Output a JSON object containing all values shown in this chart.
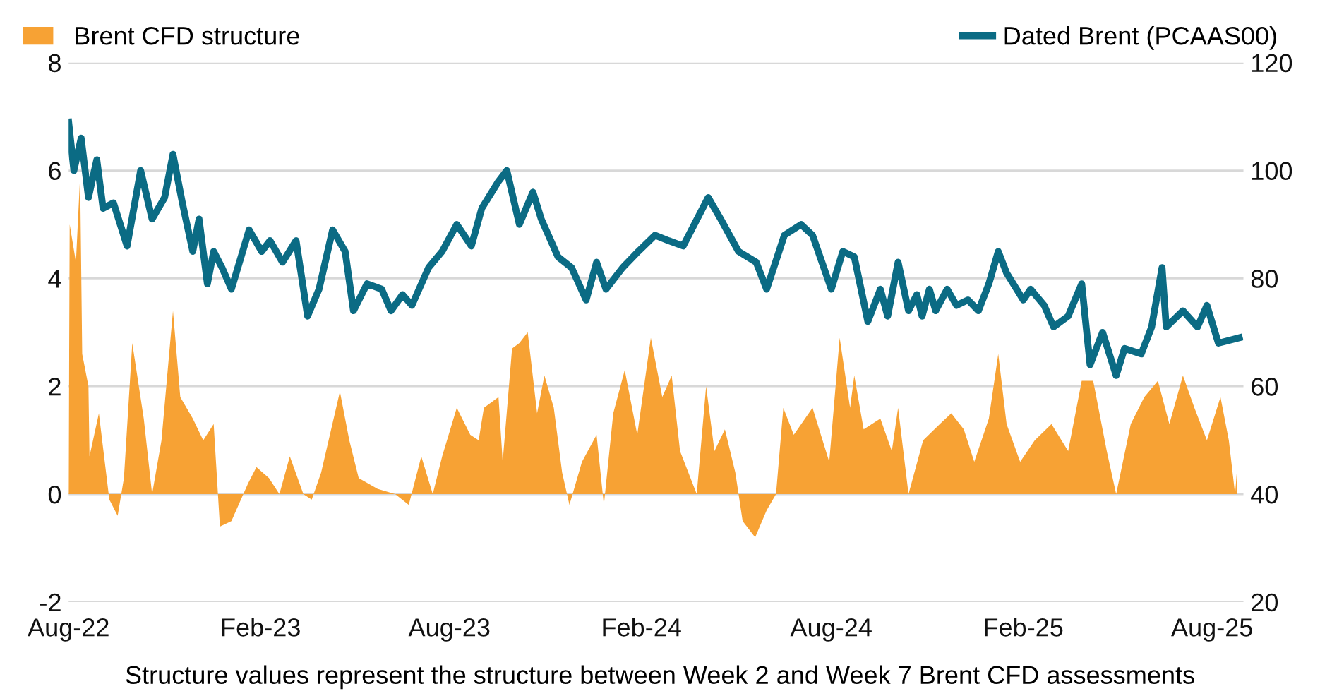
{
  "chart_data": {
    "type": "line",
    "legend": "top",
    "grid": "y",
    "annotations": [
      "Structure values represent the structure between Week 2 and Week 7 Brent CFD assessments"
    ],
    "ylim": [
      -2,
      8
    ],
    "yticks": [
      -2,
      0,
      2,
      4,
      6,
      8
    ],
    "y2lim": [
      20,
      120
    ],
    "y2ticks": [
      20,
      40,
      60,
      80,
      100,
      120
    ],
    "xlim": [
      "2022-08-01",
      "2025-08-31"
    ],
    "xticks": [
      {
        "value": "2022-08-01",
        "label": "Aug-22"
      },
      {
        "value": "2023-02-01",
        "label": "Feb-23"
      },
      {
        "value": "2023-08-01",
        "label": "Aug-23"
      },
      {
        "value": "2024-02-01",
        "label": "Feb-24"
      },
      {
        "value": "2024-08-01",
        "label": "Aug-24"
      },
      {
        "value": "2025-02-01",
        "label": "Feb-25"
      },
      {
        "value": "2025-08-01",
        "label": "Aug-25"
      }
    ],
    "series": [
      {
        "name": "Brent CFD structure",
        "type": "area",
        "color": "#f7a234",
        "x": [
          "2022-08-01",
          "2022-08-02",
          "2022-08-08",
          "2022-08-12",
          "2022-08-14",
          "2022-08-20",
          "2022-08-21",
          "2022-08-30",
          "2022-09-09",
          "2022-09-17",
          "2022-09-23",
          "2022-10-01",
          "2022-10-12",
          "2022-10-20",
          "2022-10-29",
          "2022-11-09",
          "2022-11-16",
          "2022-11-28",
          "2022-12-08",
          "2022-12-18",
          "2022-12-24",
          "2023-01-04",
          "2023-01-20",
          "2023-01-28",
          "2023-02-09",
          "2023-02-19",
          "2023-03-01",
          "2023-03-14",
          "2023-03-22",
          "2023-03-31",
          "2023-04-18",
          "2023-04-27",
          "2023-05-06",
          "2023-05-24",
          "2023-06-10",
          "2023-06-23",
          "2023-07-05",
          "2023-07-16",
          "2023-07-25",
          "2023-08-08",
          "2023-08-21",
          "2023-08-29",
          "2023-09-03",
          "2023-09-17",
          "2023-09-21",
          "2023-09-30",
          "2023-10-07",
          "2023-10-15",
          "2023-10-24",
          "2023-10-31",
          "2023-11-09",
          "2023-11-17",
          "2023-11-24",
          "2023-12-06",
          "2023-12-20",
          "2023-12-27",
          "2024-01-05",
          "2024-01-16",
          "2024-01-28",
          "2024-02-10",
          "2024-02-21",
          "2024-03-01",
          "2024-03-09",
          "2024-03-25",
          "2024-04-03",
          "2024-04-11",
          "2024-04-21",
          "2024-05-01",
          "2024-05-08",
          "2024-05-20",
          "2024-05-31",
          "2024-06-09",
          "2024-06-16",
          "2024-06-26",
          "2024-07-14",
          "2024-07-30",
          "2024-08-09",
          "2024-08-19",
          "2024-08-23",
          "2024-09-01",
          "2024-09-17",
          "2024-09-28",
          "2024-10-04",
          "2024-10-14",
          "2024-10-28",
          "2024-11-13",
          "2024-11-24",
          "2024-12-06",
          "2024-12-16",
          "2024-12-30",
          "2025-01-08",
          "2025-01-16",
          "2025-01-29",
          "2025-02-12",
          "2025-02-28",
          "2025-03-16",
          "2025-03-29",
          "2025-04-09",
          "2025-04-22",
          "2025-05-01",
          "2025-05-15",
          "2025-05-28",
          "2025-06-10",
          "2025-06-21",
          "2025-07-04",
          "2025-07-15",
          "2025-07-27",
          "2025-08-09",
          "2025-08-17",
          "2025-08-23",
          "2025-08-25"
        ],
        "values": [
          0,
          5.0,
          4.3,
          5.9,
          2.6,
          2.0,
          0.7,
          1.5,
          -0.1,
          -0.4,
          0.3,
          2.8,
          1.4,
          0,
          1.0,
          3.4,
          1.8,
          1.4,
          1.0,
          1.3,
          -0.6,
          -0.5,
          0.2,
          0.5,
          0.3,
          0,
          0.7,
          0,
          -0.1,
          0.4,
          1.9,
          1.0,
          0.3,
          0.1,
          0,
          -0.2,
          0.7,
          0,
          0.7,
          1.6,
          1.1,
          1.0,
          1.6,
          1.8,
          0.6,
          2.7,
          2.8,
          3.0,
          1.5,
          2.2,
          1.6,
          0.4,
          -0.2,
          0.6,
          1.1,
          -0.2,
          1.5,
          2.3,
          1.1,
          2.9,
          1.8,
          2.2,
          0.8,
          0,
          2.0,
          0.8,
          1.2,
          0.4,
          -0.5,
          -0.8,
          -0.3,
          0,
          1.6,
          1.1,
          1.6,
          0.6,
          2.9,
          1.6,
          2.2,
          1.2,
          1.4,
          0.8,
          1.6,
          0,
          1.0,
          1.3,
          1.5,
          1.2,
          0.6,
          1.4,
          2.6,
          1.3,
          0.6,
          1.0,
          1.3,
          0.8,
          2.1,
          2.1,
          0.8,
          0,
          1.3,
          1.8,
          2.1,
          1.3,
          2.2,
          1.6,
          1.0,
          1.8,
          1.0,
          0,
          0.5
        ]
      },
      {
        "name": "Dated Brent (PCAAS00)",
        "axis": "y2",
        "color": "#0b6b84",
        "x": [
          "2022-08-01",
          "2022-08-06",
          "2022-08-13",
          "2022-08-20",
          "2022-08-28",
          "2022-09-03",
          "2022-09-13",
          "2022-09-26",
          "2022-10-09",
          "2022-10-20",
          "2022-11-01",
          "2022-11-09",
          "2022-11-18",
          "2022-11-28",
          "2022-12-04",
          "2022-12-12",
          "2022-12-18",
          "2022-12-26",
          "2023-01-04",
          "2023-01-21",
          "2023-02-02",
          "2023-02-10",
          "2023-02-22",
          "2023-03-07",
          "2023-03-18",
          "2023-03-29",
          "2023-04-11",
          "2023-04-23",
          "2023-05-01",
          "2023-05-14",
          "2023-05-28",
          "2023-06-06",
          "2023-06-17",
          "2023-06-26",
          "2023-07-12",
          "2023-07-25",
          "2023-08-08",
          "2023-08-22",
          "2023-09-01",
          "2023-09-17",
          "2023-09-25",
          "2023-10-07",
          "2023-10-20",
          "2023-10-28",
          "2023-11-13",
          "2023-11-26",
          "2023-12-10",
          "2023-12-20",
          "2023-12-29",
          "2024-01-14",
          "2024-01-29",
          "2024-02-14",
          "2024-02-27",
          "2024-03-12",
          "2024-04-05",
          "2024-04-17",
          "2024-05-04",
          "2024-05-21",
          "2024-05-31",
          "2024-06-17",
          "2024-07-03",
          "2024-07-14",
          "2024-08-01",
          "2024-08-12",
          "2024-08-23",
          "2024-09-05",
          "2024-09-17",
          "2024-09-24",
          "2024-10-04",
          "2024-10-14",
          "2024-10-22",
          "2024-10-27",
          "2024-11-03",
          "2024-11-09",
          "2024-11-20",
          "2024-11-29",
          "2024-12-10",
          "2024-12-20",
          "2024-12-30",
          "2025-01-08",
          "2025-01-16",
          "2025-02-01",
          "2025-02-08",
          "2025-02-21",
          "2025-03-02",
          "2025-03-16",
          "2025-03-29",
          "2025-04-06",
          "2025-04-18",
          "2025-05-01",
          "2025-05-09",
          "2025-05-25",
          "2025-06-04",
          "2025-06-14",
          "2025-06-18",
          "2025-07-04",
          "2025-07-18",
          "2025-07-27",
          "2025-08-07",
          "2025-08-27"
        ],
        "values": [
          109,
          100,
          106,
          95,
          102,
          93,
          94,
          86,
          100,
          91,
          95,
          103,
          94,
          85,
          91,
          79,
          85,
          82,
          78,
          89,
          85,
          87,
          83,
          87,
          73,
          78,
          89,
          85,
          74,
          79,
          78,
          74,
          77,
          75,
          82,
          85,
          90,
          86,
          93,
          98,
          100,
          90,
          96,
          91,
          84,
          82,
          76,
          83,
          78,
          82,
          85,
          88,
          87,
          86,
          95,
          91,
          85,
          83,
          78,
          88,
          90,
          88,
          78,
          85,
          84,
          72,
          78,
          73,
          83,
          74,
          77,
          73,
          78,
          74,
          78,
          75,
          76,
          74,
          79,
          85,
          81,
          76,
          78,
          75,
          71,
          73,
          79,
          64,
          70,
          62,
          67,
          66,
          71,
          82,
          71,
          74,
          71,
          75,
          68,
          69
        ]
      }
    ]
  }
}
